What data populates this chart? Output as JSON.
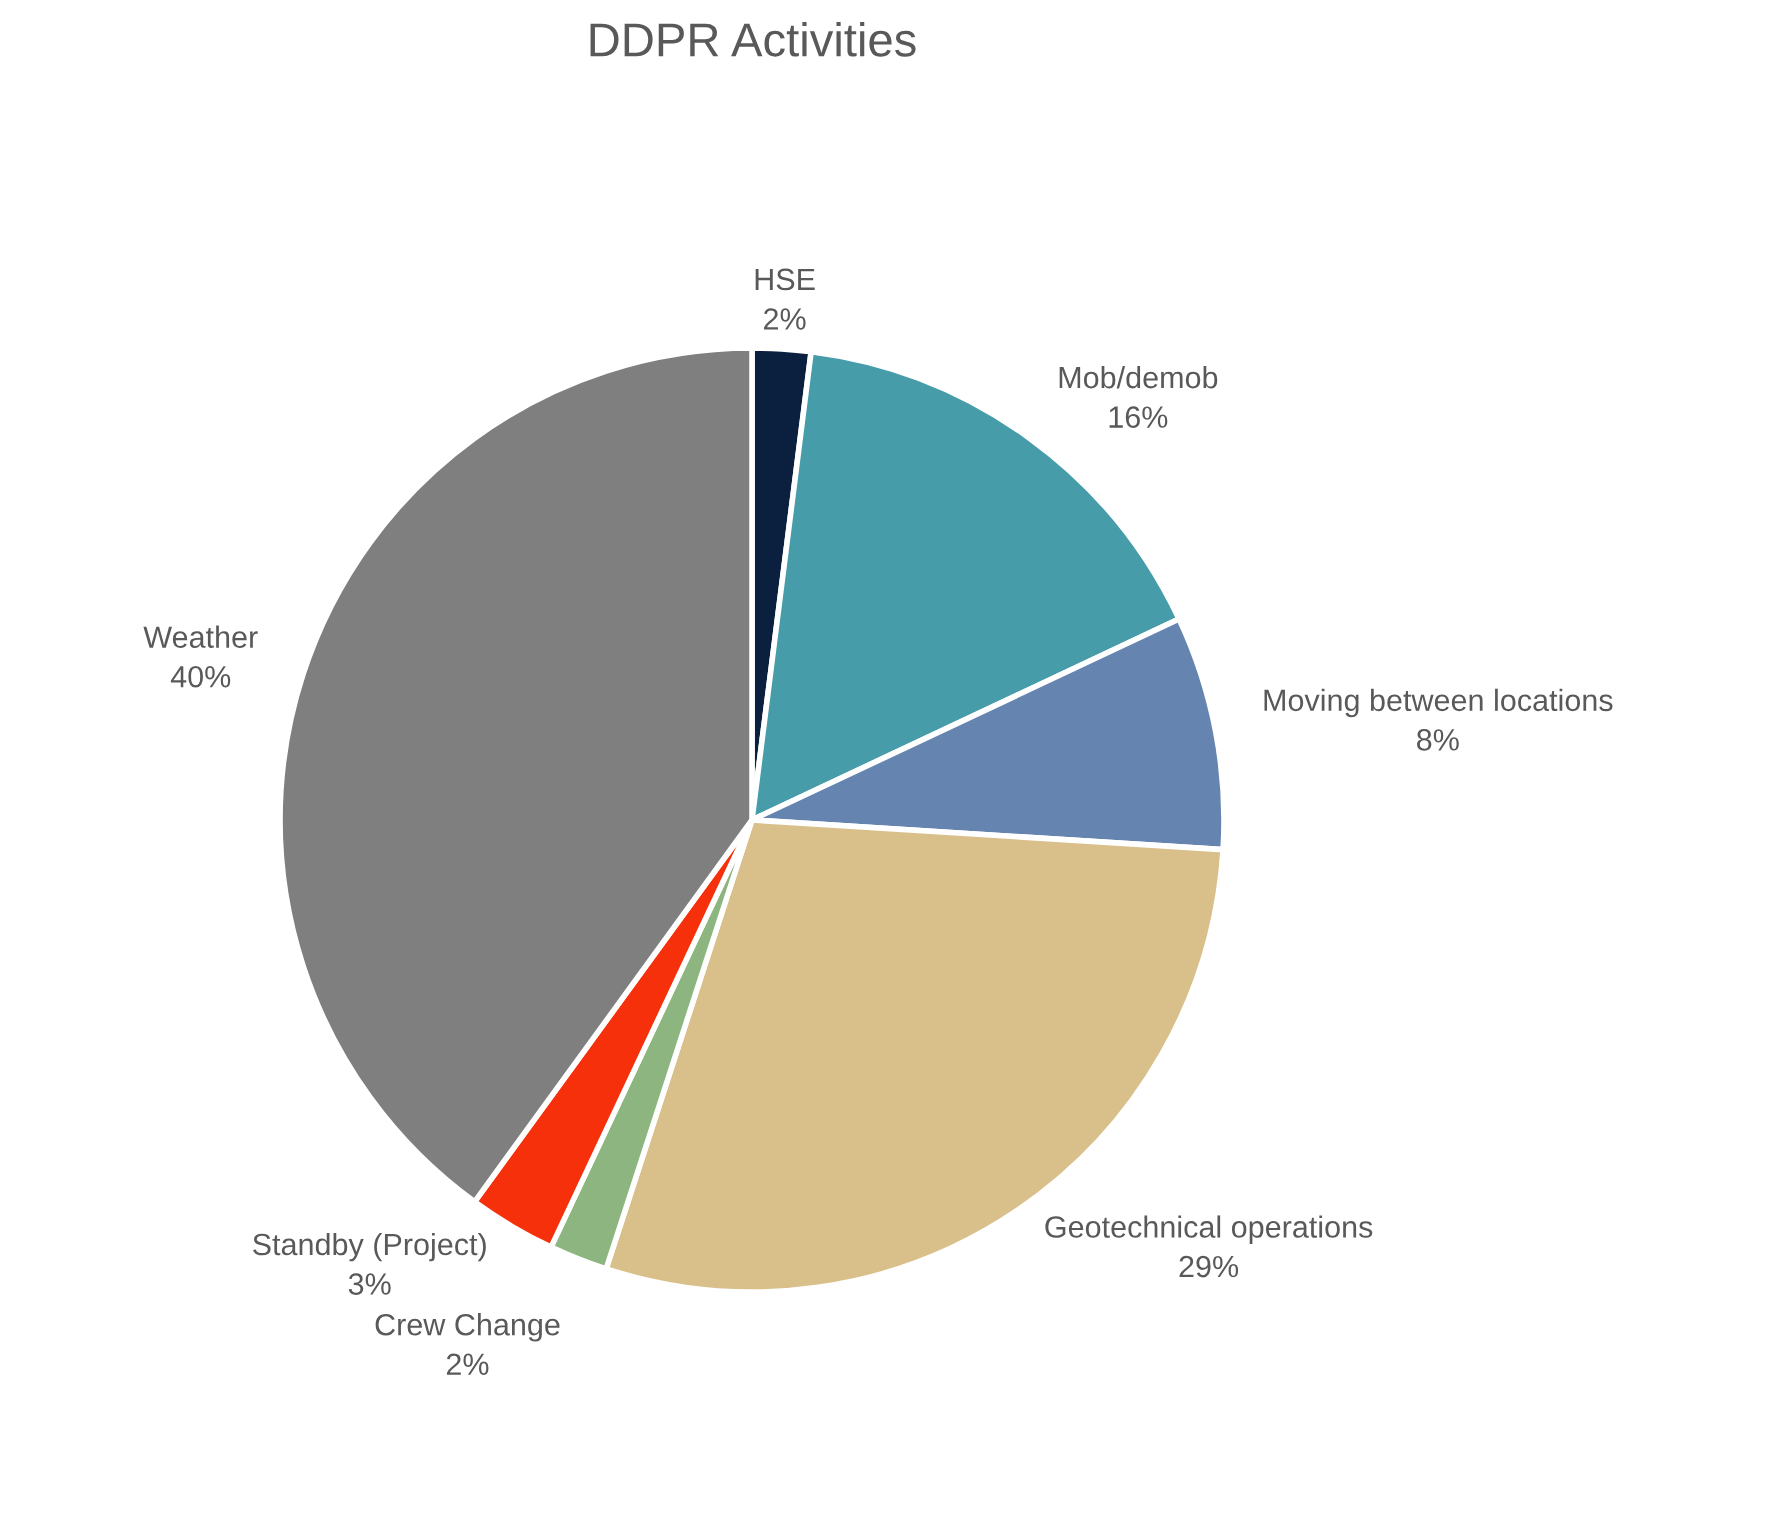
{
  "chart_data": {
    "type": "pie",
    "title": "DDPR Activities",
    "categories": [
      "HSE",
      "Mob/demob",
      "Moving between locations",
      "Geotechnical operations",
      "Crew Change",
      "Standby (Project)",
      "Weather"
    ],
    "values": [
      2,
      16,
      8,
      29,
      2,
      3,
      40
    ],
    "value_labels": [
      "2%",
      "16%",
      "8%",
      "29%",
      "2%",
      "3%",
      "40%"
    ],
    "colors": [
      "#0b1f3f",
      "#469ca9",
      "#6585b0",
      "#d9c08b",
      "#8db57f",
      "#f5300a",
      "#7f7f7f"
    ],
    "legend": false
  }
}
